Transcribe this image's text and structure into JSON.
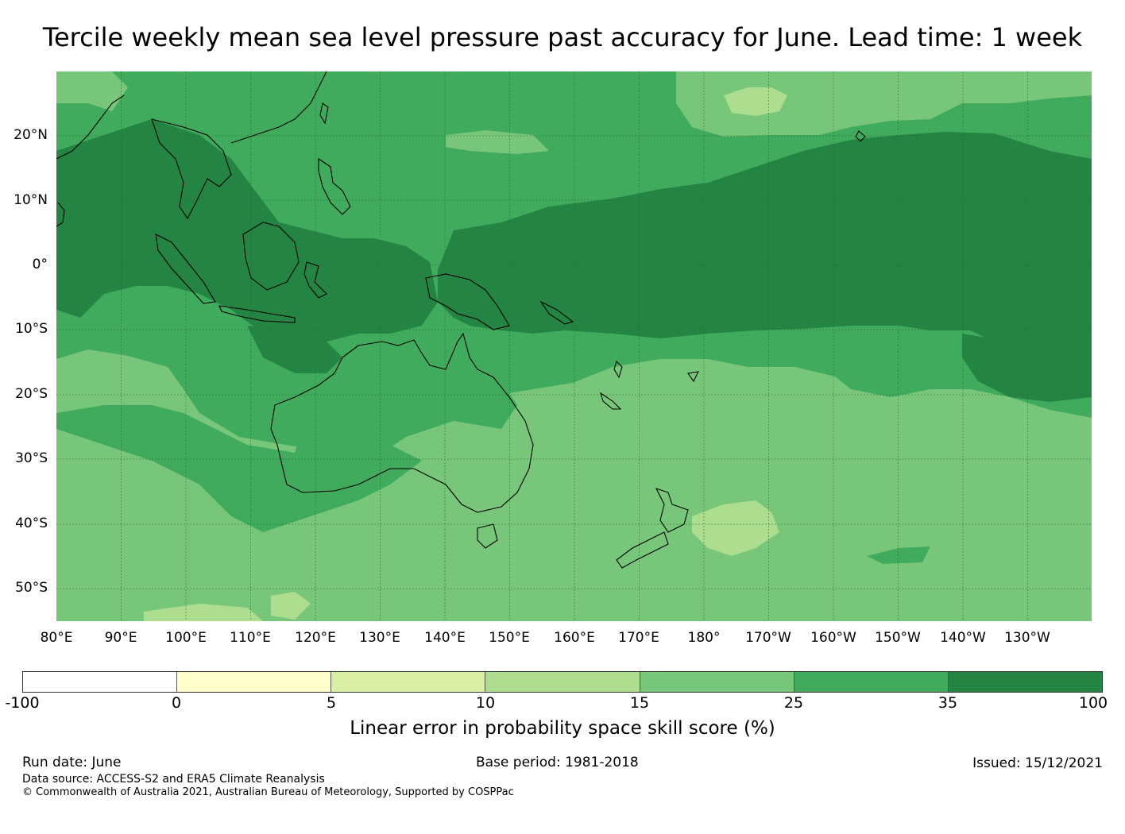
{
  "title": "Tercile weekly mean sea level pressure past accuracy for June. Lead time: 1 week",
  "map": {
    "lat_labels": [
      "20°N",
      "10°N",
      "0°",
      "10°S",
      "20°S",
      "30°S",
      "40°S",
      "50°S"
    ],
    "lon_labels": [
      "80°E",
      "90°E",
      "100°E",
      "110°E",
      "120°E",
      "130°E",
      "140°E",
      "150°E",
      "160°E",
      "170°E",
      "180°",
      "170°W",
      "160°W",
      "150°W",
      "140°W",
      "130°W"
    ],
    "lon_range": [
      "80°E",
      "120°W"
    ],
    "lat_range": [
      "55°S",
      "30°N"
    ],
    "colors": {
      "c15_25": "#78c679",
      "c25_35": "#41ab5d",
      "c35_100": "#238443",
      "c10_15": "#addd8e",
      "c5_10": "#d9f0a3",
      "coast": "#000000",
      "grid": "#2e6b2e"
    }
  },
  "colorbar": {
    "ticks": [
      "-100",
      "0",
      "5",
      "10",
      "15",
      "25",
      "35",
      "100"
    ],
    "colors": [
      "#ffffff",
      "#ffffcc",
      "#d9f0a3",
      "#addd8e",
      "#78c679",
      "#41ab5d",
      "#238443"
    ],
    "label": "Linear error in probability space skill score (%)"
  },
  "footer": {
    "run_date": "Run date: June",
    "base_period": "Base period: 1981-2018",
    "issued": "Issued: 15/12/2021",
    "data_source": "Data source: ACCESS-S2 and ERA5 Climate Reanalysis",
    "copyright": "© Commonwealth of Australia 2021, Australian Bureau of Meteorology, Supported by COSPPac"
  }
}
